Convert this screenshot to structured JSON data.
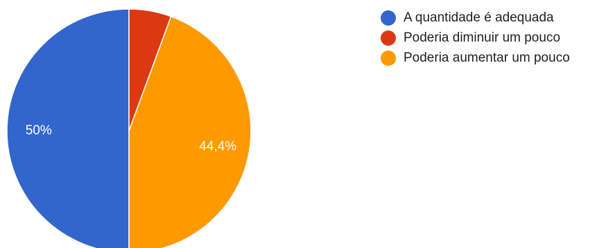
{
  "chart_data": {
    "type": "pie",
    "categories": [
      "A quantidade é adequada",
      "Poderia diminuir um pouco",
      "Poderia aumentar um pouco"
    ],
    "values": [
      50,
      5.6,
      44.4
    ],
    "data_labels": [
      "50%",
      "",
      "44,4%"
    ],
    "colors": [
      "#3366cc",
      "#dc3912",
      "#ff9900"
    ],
    "start_angle_deg": 90,
    "direction": "clockwise",
    "legend_position": "right"
  }
}
